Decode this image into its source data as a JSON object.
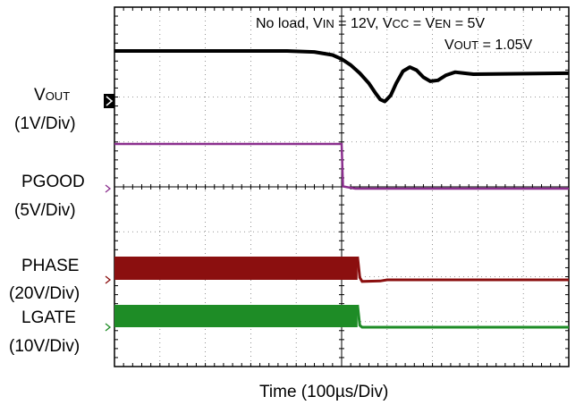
{
  "chart_data": {
    "type": "line",
    "title": "",
    "annotation": {
      "line1": {
        "a": "No load, V",
        "a_sub": "IN",
        "b": " = 12V, V",
        "b_sub": "CC",
        "c": " = V",
        "c_sub": "EN",
        "d": " = 5V"
      },
      "line2": {
        "a": "V",
        "a_sub": "OUT",
        "b": " = 1.05V"
      }
    },
    "xlabel": "Time  (100µs/Div)",
    "x_unit": "µs",
    "xlim": [
      0,
      1000
    ],
    "grid": true,
    "channels": [
      {
        "name": "VOUT",
        "name_main": "V",
        "name_sub": "OUT",
        "scale": "(1V/Div)",
        "color": "#000000",
        "waveform": [
          [
            0,
            0
          ],
          [
            380,
            0
          ],
          [
            440,
            -0.05
          ],
          [
            480,
            -0.2
          ],
          [
            500,
            -0.4
          ],
          [
            520,
            -0.7
          ],
          [
            540,
            -1.1
          ],
          [
            560,
            -1.6
          ],
          [
            575,
            -2.1
          ],
          [
            585,
            -2.4
          ],
          [
            595,
            -2.5
          ],
          [
            608,
            -2.2
          ],
          [
            620,
            -1.6
          ],
          [
            635,
            -1.0
          ],
          [
            650,
            -0.8
          ],
          [
            665,
            -0.95
          ],
          [
            680,
            -1.3
          ],
          [
            695,
            -1.5
          ],
          [
            712,
            -1.45
          ],
          [
            730,
            -1.2
          ],
          [
            750,
            -1.05
          ],
          [
            770,
            -1.1
          ],
          [
            790,
            -1.15
          ],
          [
            1000,
            -1.1
          ]
        ]
      },
      {
        "name": "PGOOD",
        "scale": "(5V/Div)",
        "color": "#8b2f8e",
        "waveform": [
          [
            0,
            1
          ],
          [
            500,
            1
          ],
          [
            503,
            0.05
          ],
          [
            530,
            0
          ],
          [
            1000,
            0
          ]
        ]
      },
      {
        "name": "PHASE",
        "scale": "(20V/Div)",
        "color": "#8b0f0f",
        "waveform": [
          [
            0,
            1
          ],
          [
            535,
            1
          ],
          [
            540,
            0.1
          ],
          [
            545,
            -0.07
          ],
          [
            585,
            -0.05
          ],
          [
            600,
            0
          ],
          [
            1000,
            0
          ]
        ]
      },
      {
        "name": "LGATE",
        "scale": "(10V/Div)",
        "color": "#1e8c26",
        "waveform": [
          [
            0,
            1
          ],
          [
            535,
            1
          ],
          [
            540,
            0.08
          ],
          [
            545,
            0
          ],
          [
            1000,
            0
          ]
        ]
      }
    ]
  }
}
